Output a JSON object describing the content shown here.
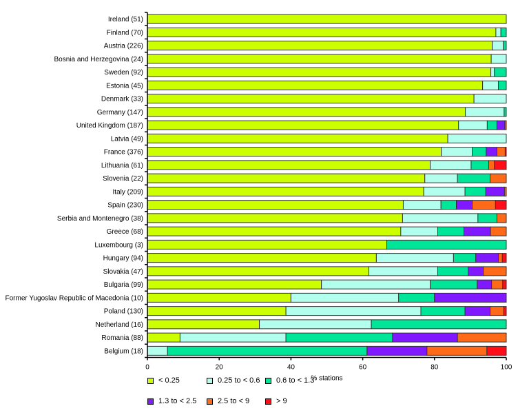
{
  "chart_data": {
    "type": "bar",
    "orientation": "horizontal",
    "stacked": true,
    "title": "",
    "xlabel": "% stations",
    "ylabel": "",
    "xlim": [
      0,
      100
    ],
    "xticks": [
      "0",
      "20",
      "40",
      "60",
      "80",
      "100"
    ],
    "grid": false,
    "legend_position": "bottom-left",
    "categories": [
      "Ireland (51)",
      "Finland (70)",
      "Austria (226)",
      "Bosnia and Herzegovina (24)",
      "Sweden (92)",
      "Estonia (45)",
      "Denmark (33)",
      "Germany (147)",
      "United Kingdom (187)",
      "Latvia (49)",
      "France (376)",
      "Lithuania (61)",
      "Slovenia (22)",
      "Italy (209)",
      "Spain (230)",
      "Serbia and Montenegro (38)",
      "Greece (68)",
      "Luxembourg (3)",
      "Hungary (94)",
      "Slovakia (47)",
      "Bulgaria (99)",
      "Former Yugoslav Republic of Macedonia (10)",
      "Poland (130)",
      "Netherland (16)",
      "Romania (88)",
      "Belgium (18)"
    ],
    "series": [
      {
        "name": "< 0.25",
        "color": "#ccff00",
        "values": [
          100,
          97.1,
          96.1,
          95.8,
          95.7,
          93.4,
          91.0,
          88.6,
          86.7,
          83.7,
          81.9,
          78.8,
          77.3,
          77.0,
          71.3,
          71.1,
          70.6,
          66.7,
          63.8,
          61.7,
          48.5,
          40.0,
          38.6,
          31.2,
          9.1,
          0
        ]
      },
      {
        "name": "0.25 to < 0.6",
        "color": "#b3ffee",
        "values": [
          0,
          1.4,
          3.1,
          4.2,
          1.0,
          4.4,
          9.0,
          10.8,
          8.0,
          16.3,
          8.6,
          11.4,
          9.1,
          11.5,
          10.5,
          21.0,
          10.3,
          0,
          21.5,
          19.2,
          30.3,
          30.0,
          37.6,
          31.2,
          29.5,
          5.6
        ]
      },
      {
        "name": "0.6 to < 1.3",
        "color": "#00e699",
        "values": [
          0,
          1.5,
          0.8,
          0,
          3.3,
          2.2,
          0,
          0.6,
          2.7,
          0,
          3.9,
          4.9,
          9.1,
          5.8,
          4.3,
          5.3,
          7.3,
          33.3,
          6.2,
          8.5,
          13.1,
          10.0,
          12.3,
          37.6,
          29.7,
          55.6
        ]
      },
      {
        "name": "1.3 to < 2.5",
        "color": "#8019ff",
        "values": [
          0,
          0,
          0,
          0,
          0,
          0,
          0,
          0,
          2.2,
          0,
          3.0,
          0,
          0,
          5.2,
          4.4,
          0,
          7.4,
          0,
          6.3,
          4.2,
          4.0,
          20.0,
          7.0,
          0,
          18.1,
          16.7
        ]
      },
      {
        "name": "2.5 to < 9",
        "color": "#ff6a19",
        "values": [
          0,
          0,
          0,
          0,
          0,
          0,
          0,
          0,
          0.4,
          0,
          2.3,
          1.6,
          4.5,
          0.5,
          6.5,
          2.6,
          4.4,
          0,
          1.1,
          6.4,
          3.1,
          0,
          3.8,
          0,
          13.6,
          16.7
        ]
      },
      {
        "name": "> 9",
        "color": "#ff0d19",
        "values": [
          0,
          0,
          0,
          0,
          0,
          0,
          0,
          0,
          0,
          0,
          0.3,
          3.3,
          0,
          0,
          3.0,
          0,
          0,
          0,
          1.1,
          0,
          1.0,
          0,
          0.7,
          0,
          0,
          5.4
        ]
      }
    ]
  }
}
